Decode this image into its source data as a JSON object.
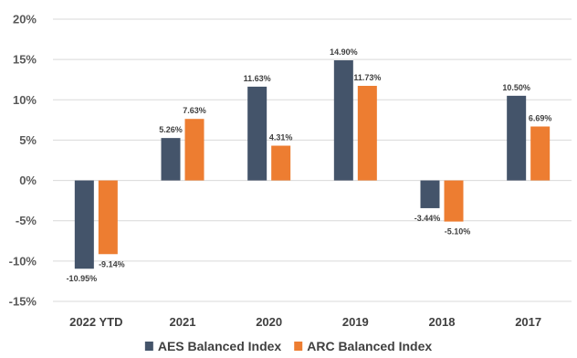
{
  "chart_data": {
    "type": "bar",
    "categories": [
      "2022 YTD",
      "2021",
      "2020",
      "2019",
      "2018",
      "2017"
    ],
    "series": [
      {
        "name": "AES Balanced Index",
        "color": "#44546A",
        "values": [
          -10.95,
          5.26,
          11.63,
          14.9,
          -3.44,
          10.5
        ],
        "labels": [
          "-10.95%",
          "5.26%",
          "11.63%",
          "14.90%",
          "-3.44%",
          "10.50%"
        ]
      },
      {
        "name": "ARC Balanced Index",
        "color": "#ED7D31",
        "values": [
          -9.14,
          7.63,
          4.31,
          11.73,
          -5.1,
          6.69
        ],
        "labels": [
          "-9.14%",
          "7.63%",
          "4.31%",
          "11.73%",
          "-5.10%",
          "6.69%"
        ]
      }
    ],
    "ylim": [
      -15,
      20
    ],
    "yticks": [
      20,
      15,
      10,
      5,
      0,
      -5,
      -10,
      -15
    ],
    "ytick_labels": [
      "20%",
      "15%",
      "10%",
      "5%",
      "0%",
      "-5%",
      "-10%",
      "-15%"
    ],
    "grid": true,
    "legend_position": "bottom",
    "title": "",
    "xlabel": "",
    "ylabel": ""
  }
}
